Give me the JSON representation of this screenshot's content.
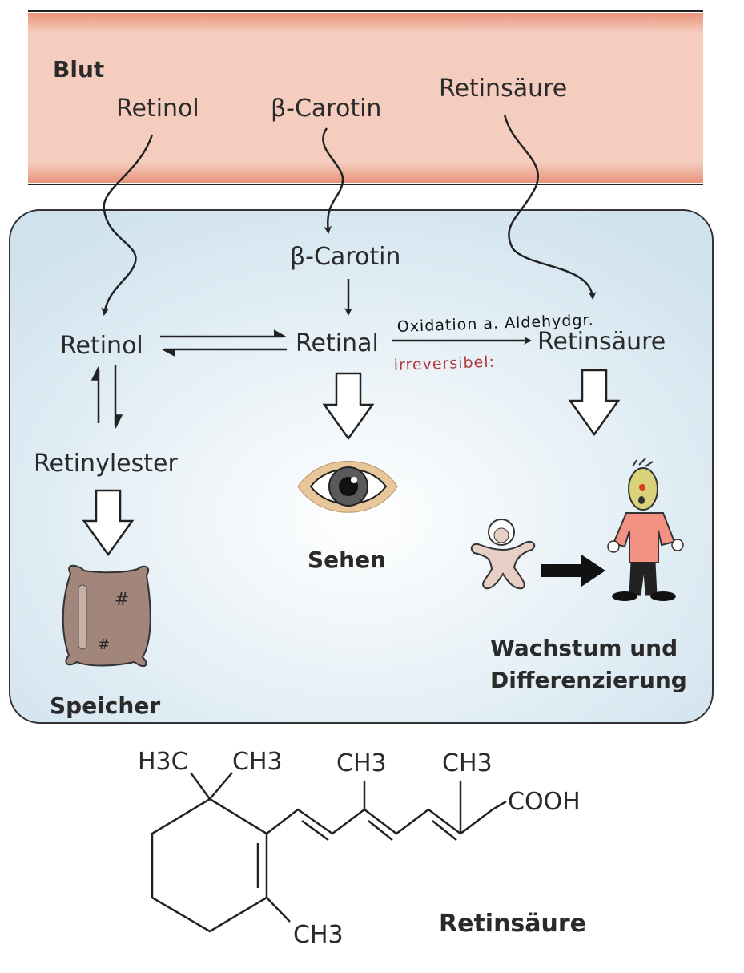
{
  "blood": {
    "title": "Blut",
    "retinol": "Retinol",
    "carotin": "β-Carotin",
    "retinsaeure": "Retinsäure"
  },
  "cell": {
    "carotin": "β-Carotin",
    "retinol": "Retinol",
    "retinal": "Retinal",
    "retinsaeure": "Retinsäure",
    "retinylester": "Retinylester",
    "speicher": "Speicher",
    "sehen": "Sehen",
    "growth_line1": "Wachstum und",
    "growth_line2": "Differenzierung"
  },
  "annotations": {
    "oxidation": "Oxidation a. Aldehydgr.",
    "irreversibel": "irreversibel:"
  },
  "structure": {
    "h3c": "H3C",
    "ch3_top1": "CH3",
    "ch3_top2": "CH3",
    "ch3_top3": "CH3",
    "cooh": "COOH",
    "ch3_bottom": "CH3",
    "name": "Retinsäure"
  },
  "colors": {
    "blood_band": "#e9937a",
    "blood_fill": "#f5cdbf",
    "cell_fill": "#dcebf3",
    "annotation_red": "#b03a3a"
  }
}
